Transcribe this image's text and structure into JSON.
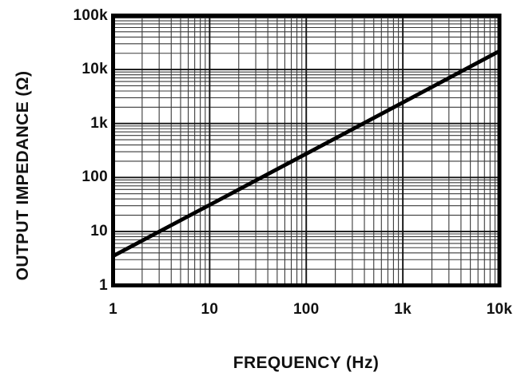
{
  "chart_data": {
    "type": "line",
    "title": "",
    "xlabel": "FREQUENCY (Hz)",
    "ylabel": "OUTPUT IMPEDANCE (Ω)",
    "x_scale": "log",
    "y_scale": "log",
    "xlim": [
      1,
      10000
    ],
    "ylim": [
      1,
      100000
    ],
    "grid": {
      "minor": true,
      "minor_color": "#3a3a3a",
      "major_color": "#141414"
    },
    "x_ticks": [
      {
        "v": 1,
        "label": "1"
      },
      {
        "v": 10,
        "label": "10"
      },
      {
        "v": 100,
        "label": "100"
      },
      {
        "v": 1000,
        "label": "1k"
      },
      {
        "v": 10000,
        "label": "10k"
      }
    ],
    "y_ticks": [
      {
        "v": 1,
        "label": "1"
      },
      {
        "v": 10,
        "label": "10"
      },
      {
        "v": 100,
        "label": "100"
      },
      {
        "v": 1000,
        "label": "1k"
      },
      {
        "v": 10000,
        "label": "10k"
      },
      {
        "v": 100000,
        "label": "100k"
      }
    ],
    "series": [
      {
        "name": "output_impedance_vs_frequency",
        "color": "#000000",
        "points": [
          [
            1,
            3.5
          ],
          [
            10,
            31
          ],
          [
            100,
            275
          ],
          [
            1000,
            2450
          ],
          [
            10000,
            22000
          ]
        ]
      }
    ],
    "border_color": "#000000",
    "text_color": "#111111"
  }
}
